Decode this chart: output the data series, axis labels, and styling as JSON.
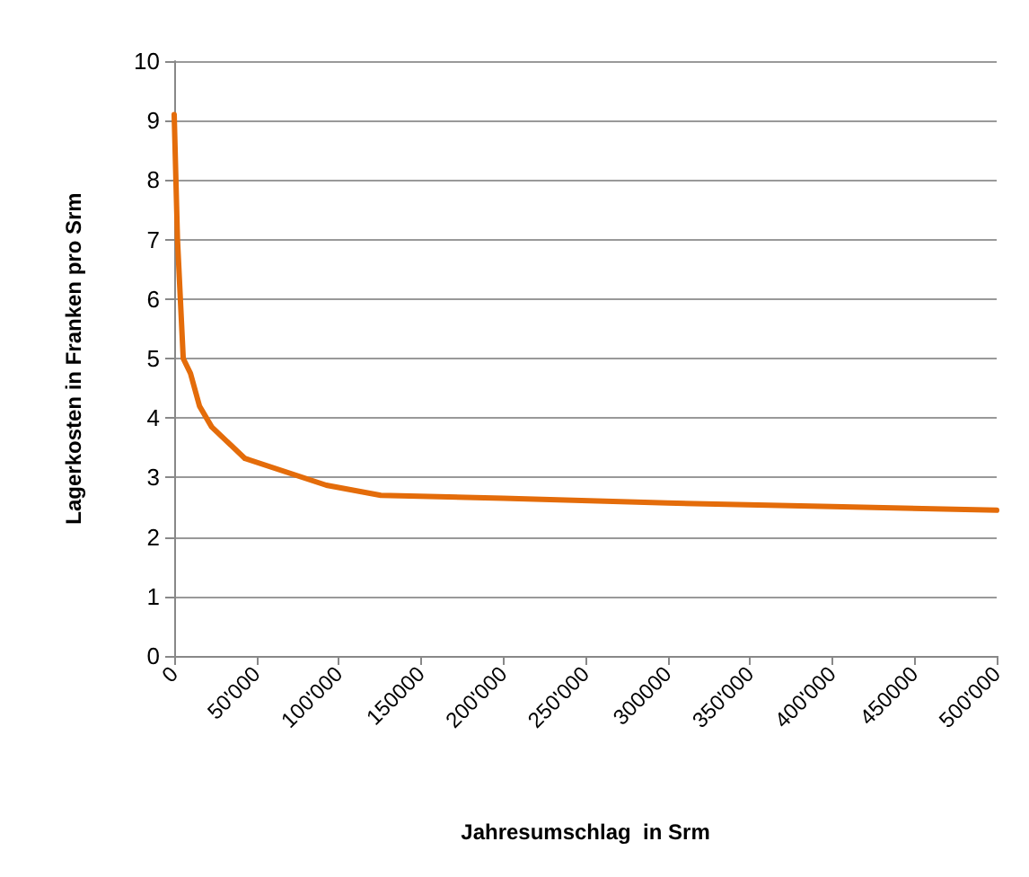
{
  "chart_data": {
    "type": "line",
    "xlabel": "Jahresumschlag  in Srm",
    "ylabel": "Lagerkosten in Franken pro Srm",
    "x": [
      0,
      2000,
      5500,
      9900,
      15400,
      22800,
      43000,
      92500,
      125600,
      200000,
      300000,
      400000,
      500000
    ],
    "series": [
      {
        "color": "#e46c0a",
        "values": [
          9.1,
          7.0,
          5.0,
          4.75,
          4.2,
          3.85,
          3.32,
          2.87,
          2.7,
          2.65,
          2.57,
          2.51,
          2.45
        ]
      }
    ],
    "xlim": [
      0,
      500000
    ],
    "xticks": [
      0,
      {
        "value": 50000,
        "label": "50'000"
      },
      {
        "value": 100000,
        "label": "100'000"
      },
      150000,
      {
        "value": 200000,
        "label": "200'000"
      },
      {
        "value": 250000,
        "label": "250'000"
      },
      300000,
      {
        "value": 350000,
        "label": "350'000"
      },
      {
        "value": 400000,
        "label": "400'000"
      },
      450000,
      {
        "value": 500000,
        "label": "500'000"
      }
    ],
    "ylim": [
      0,
      10
    ],
    "yticks": [
      0,
      1,
      2,
      3,
      4,
      5,
      6,
      7,
      8,
      9,
      10
    ],
    "grid": "y",
    "marker": "none",
    "line_style": "solid"
  }
}
